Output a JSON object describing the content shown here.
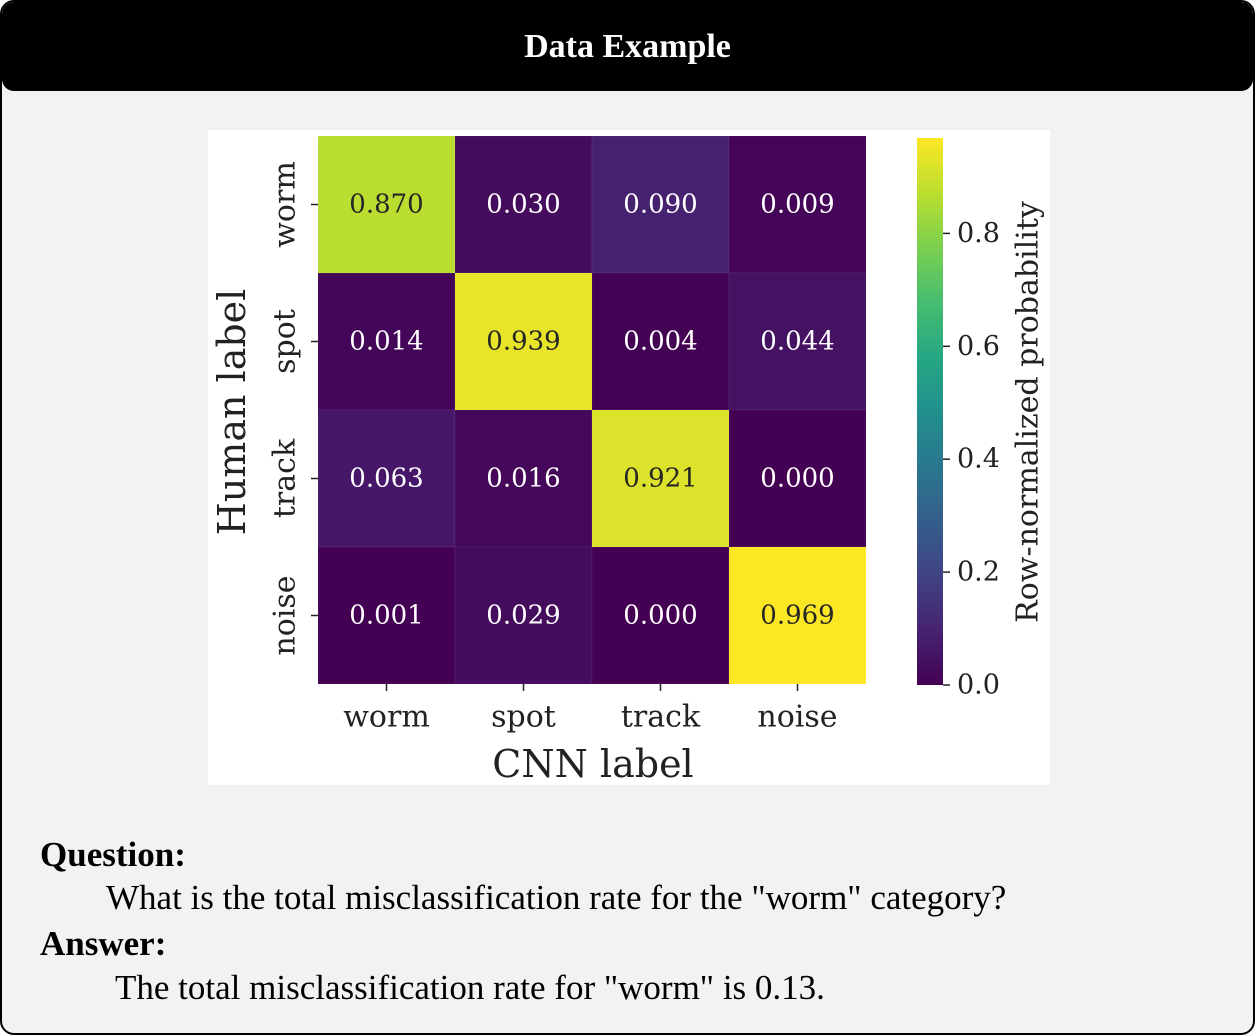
{
  "header": {
    "title": "Data Example"
  },
  "chart_data": {
    "type": "heatmap",
    "xlabel": "CNN label",
    "ylabel": "Human label",
    "x_categories": [
      "worm",
      "spot",
      "track",
      "noise"
    ],
    "y_categories": [
      "worm",
      "spot",
      "track",
      "noise"
    ],
    "values": [
      [
        0.87,
        0.03,
        0.09,
        0.009
      ],
      [
        0.014,
        0.939,
        0.004,
        0.044
      ],
      [
        0.063,
        0.016,
        0.921,
        0.0
      ],
      [
        0.001,
        0.029,
        0.0,
        0.969
      ]
    ],
    "value_labels": [
      [
        "0.870",
        "0.030",
        "0.090",
        "0.009"
      ],
      [
        "0.014",
        "0.939",
        "0.004",
        "0.044"
      ],
      [
        "0.063",
        "0.016",
        "0.921",
        "0.000"
      ],
      [
        "0.001",
        "0.029",
        "0.000",
        "0.969"
      ]
    ],
    "colormap": "viridis",
    "colorbar": {
      "label": "Row-normalized probability",
      "range": [
        0.0,
        0.969
      ],
      "ticks": [
        0.0,
        0.2,
        0.4,
        0.6,
        0.8
      ],
      "tick_labels": [
        "0.0",
        "0.2",
        "0.4",
        "0.6",
        "0.8"
      ]
    }
  },
  "qa": {
    "question_label": "Question:",
    "question_text": "What is the total misclassification rate for the \"worm\" category?",
    "answer_label": "Answer:",
    "answer_text": "The total misclassification rate for \"worm\" is 0.13."
  }
}
